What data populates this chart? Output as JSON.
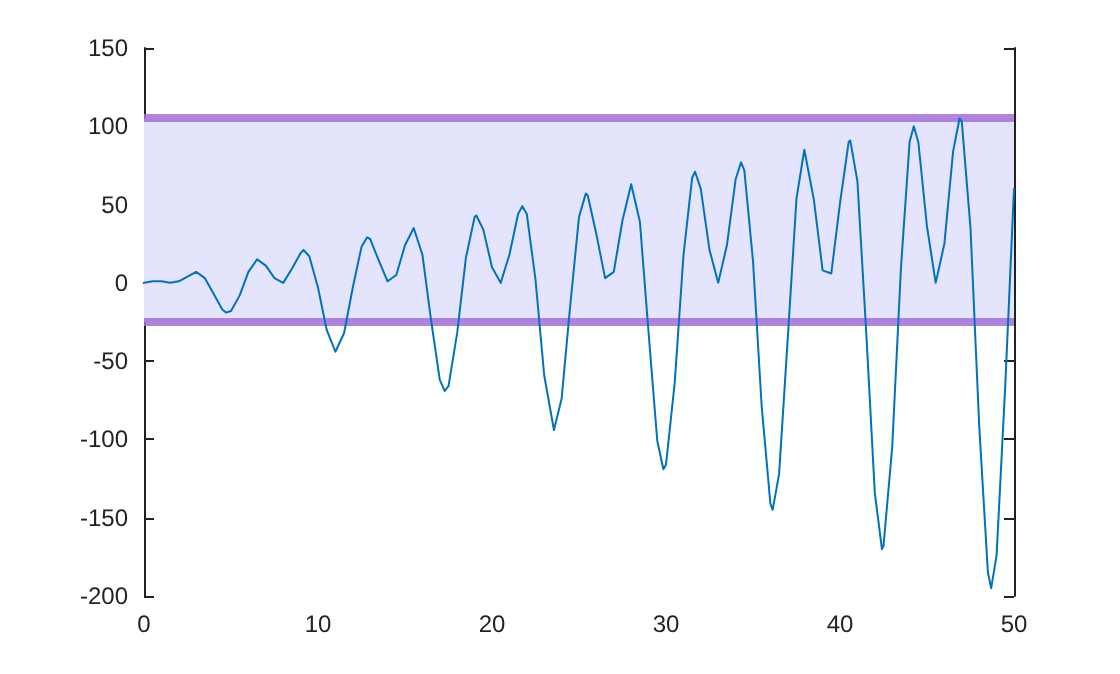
{
  "chart_data": {
    "type": "line",
    "x": [
      0,
      0.5,
      1,
      1.5,
      2,
      2.5,
      3,
      3.5,
      4,
      4.5,
      4.71,
      5,
      5.5,
      6,
      6.5,
      7,
      7.5,
      8,
      8.5,
      9,
      9.17,
      9.5,
      10,
      10.5,
      11,
      11.5,
      12,
      12.5,
      12.82,
      13,
      13.5,
      14,
      14.5,
      15,
      15.5,
      16,
      16.5,
      17,
      17.28,
      17.5,
      18,
      18.5,
      19,
      19.1,
      19.5,
      20,
      20.5,
      21,
      21.5,
      21.74,
      22,
      22.5,
      23,
      23.56,
      24,
      24.5,
      25,
      25.39,
      25.5,
      26,
      26.5,
      27,
      27.5,
      28,
      28.5,
      29,
      29.5,
      29.85,
      30,
      30.5,
      31,
      31.5,
      31.67,
      32,
      32.5,
      33,
      33.5,
      34,
      34.31,
      34.5,
      35,
      35.5,
      36,
      36.13,
      36.5,
      37,
      37.5,
      37.95,
      38,
      38.5,
      39,
      39.5,
      40,
      40.5,
      40.59,
      41,
      41.5,
      42,
      42.41,
      42.5,
      43,
      43.5,
      44,
      44.24,
      44.5,
      45,
      45.5,
      46,
      46.5,
      46.87,
      47,
      47.5,
      48,
      48.5,
      48.69,
      49,
      49.5,
      50
    ],
    "series": [
      {
        "color": "#0072bd",
        "values": [
          0,
          1,
          1,
          0,
          1,
          4,
          7,
          3,
          -7,
          -17,
          -19,
          -18,
          -8,
          7,
          15,
          11,
          3,
          0,
          9,
          19,
          21,
          17,
          -3,
          -30,
          -44,
          -32,
          -3,
          23,
          29,
          28,
          14,
          1,
          5,
          24,
          35,
          18,
          -24,
          -62,
          -69,
          -66,
          -32,
          16,
          42,
          43,
          34,
          10,
          0,
          18,
          44,
          49,
          44,
          2,
          -59,
          -94,
          -74,
          -14,
          42,
          57,
          56,
          31,
          3,
          7,
          40,
          63,
          39,
          -32,
          -101,
          -119,
          -116,
          -64,
          17,
          67,
          71,
          60,
          21,
          0,
          24,
          66,
          77,
          72,
          14,
          -79,
          -141,
          -145,
          -122,
          -35,
          54,
          85,
          85,
          53,
          8,
          6,
          51,
          90,
          91,
          65,
          -30,
          -134,
          -170,
          -168,
          -105,
          9,
          90,
          100,
          90,
          36,
          0,
          25,
          84,
          105,
          103,
          35,
          -91,
          -185,
          -195,
          -174,
          -65,
          60
        ]
      }
    ],
    "xlim": [
      0,
      50
    ],
    "xticks": [
      0,
      10,
      20,
      30,
      40,
      50
    ],
    "ylim": [
      -200,
      150
    ],
    "yticks": [
      -200,
      -150,
      -100,
      -50,
      0,
      50,
      100,
      150
    ],
    "bands": [
      {
        "axis": "y",
        "from": -25,
        "to": 105,
        "color": "#e4e4fc"
      }
    ],
    "ref_lines": [
      {
        "axis": "y",
        "value": 105,
        "color": "#a370d8"
      },
      {
        "axis": "y",
        "value": -25,
        "color": "#a370d8"
      }
    ],
    "marker": "none",
    "line_style": "solid"
  }
}
